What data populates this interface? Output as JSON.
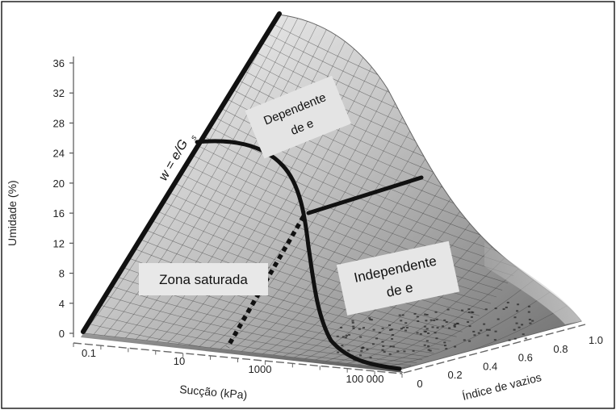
{
  "chart_data": {
    "type": "surface",
    "axes": {
      "y": {
        "label": "Umidade (%)",
        "ticks": [
          "0",
          "4",
          "8",
          "12",
          "16",
          "20",
          "24",
          "28",
          "32",
          "36"
        ],
        "range": [
          0,
          36
        ]
      },
      "x": {
        "label": "Sucção (kPa)",
        "scale": "log",
        "ticks": [
          "0.1",
          "10",
          "1000",
          "100 000"
        ]
      },
      "z": {
        "label": "Índice de vazios",
        "ticks": [
          "0",
          "0.2",
          "0.4",
          "0.6",
          "0.8",
          "1.0"
        ],
        "range": [
          0,
          1.0
        ]
      }
    },
    "annotations": {
      "equation": "w = e/G",
      "equation_subscript": "s",
      "saturated_zone": "Zona saturada",
      "dependent_top": "Dependente",
      "dependent_bottom": "de e",
      "independent_top": "Independente",
      "independent_bottom": "de e"
    },
    "colors": {
      "boundary_line": "#111111",
      "surface_light": "#f2f2f2",
      "surface_dark": "#7a7a7a",
      "label_box": "#e6e6e6"
    }
  }
}
